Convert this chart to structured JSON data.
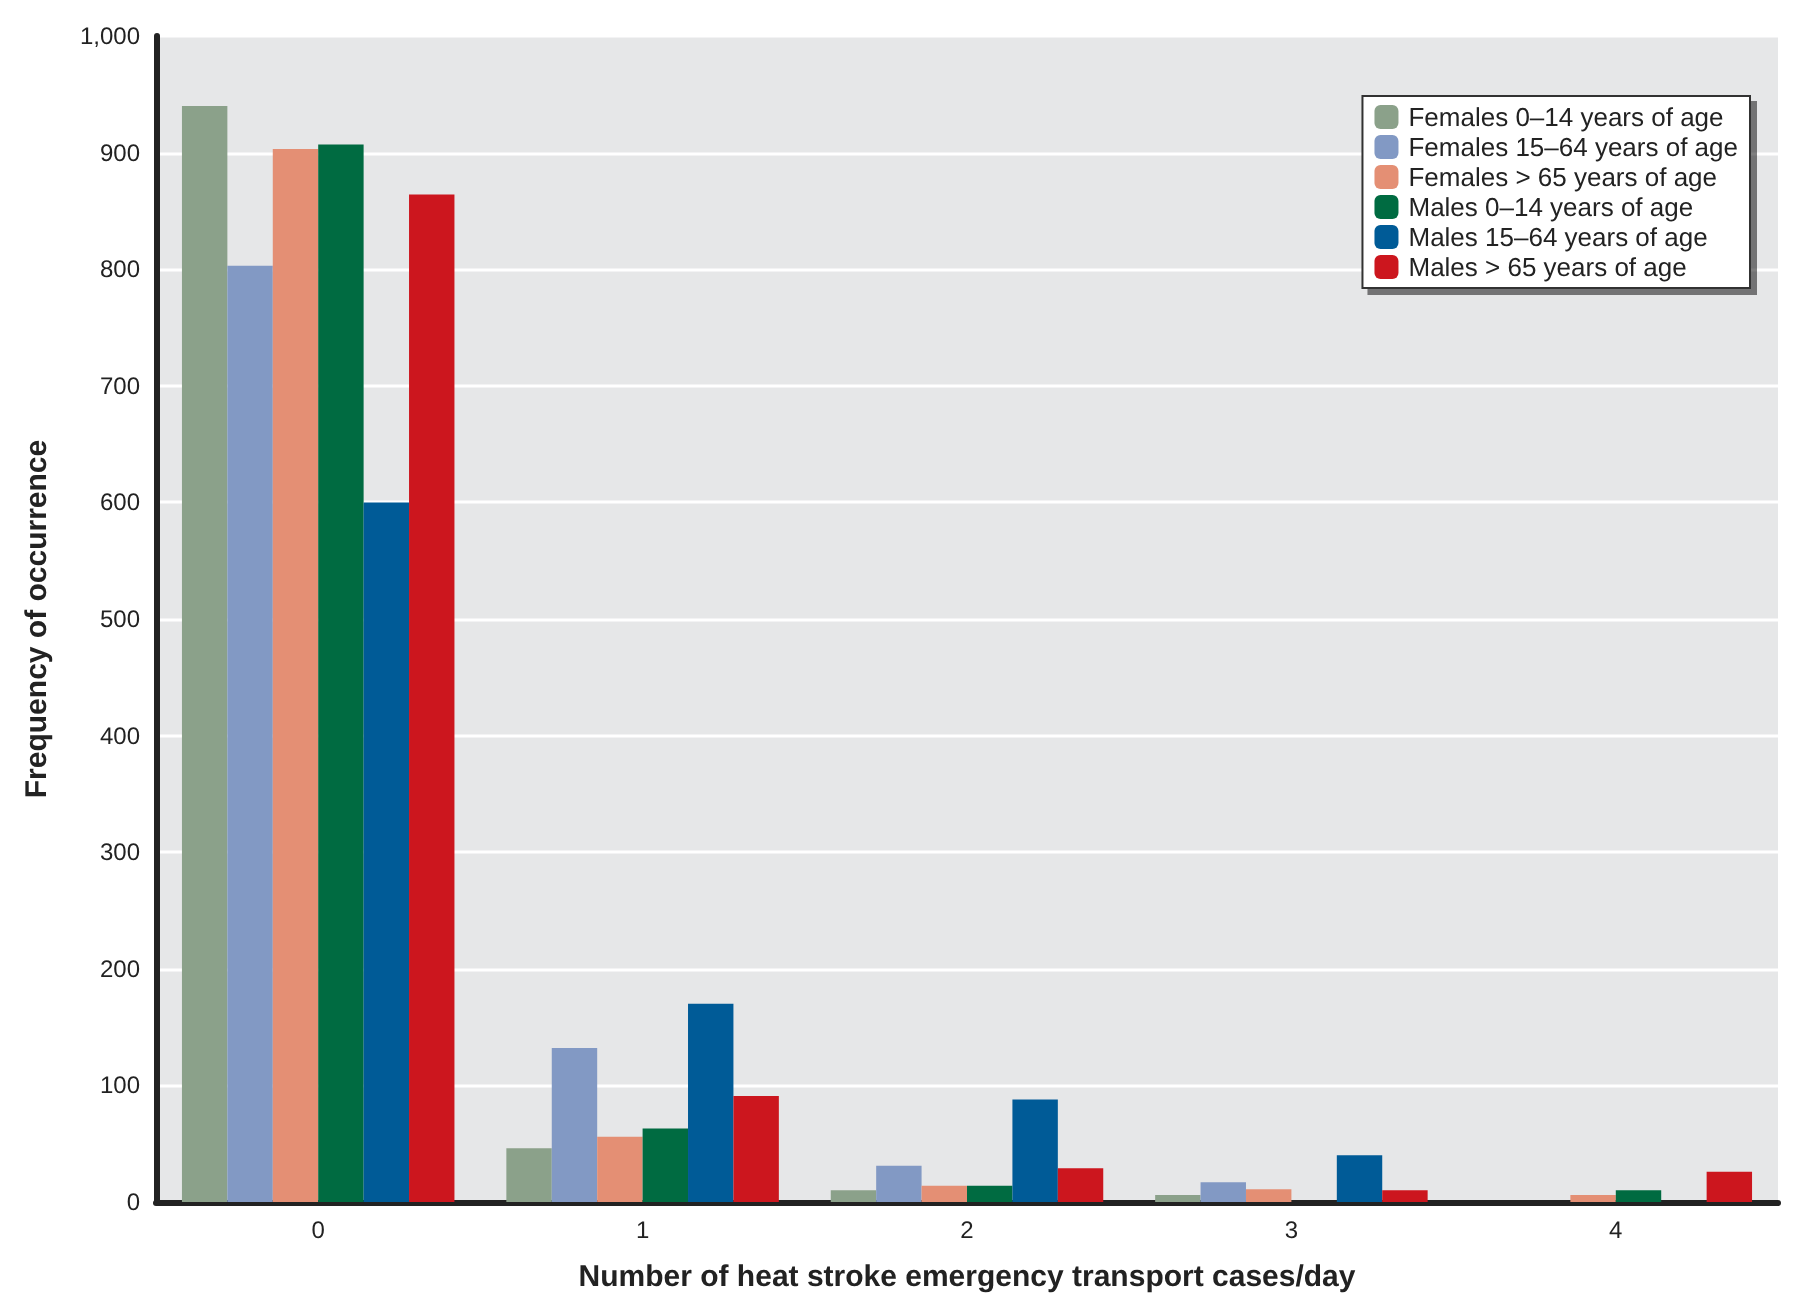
{
  "chart_data": {
    "type": "bar",
    "xlabel": "Number of heat stroke emergency transport cases/day",
    "ylabel": "Frequency of occurrence",
    "categories": [
      "0",
      "1",
      "2",
      "3",
      "4"
    ],
    "series": [
      {
        "name": "Females 0–14 years of age",
        "color": "#8ba18a",
        "values": [
          940,
          46,
          10,
          6,
          0
        ]
      },
      {
        "name": "Females 15–64 years of age",
        "color": "#8299c4",
        "values": [
          803,
          132,
          31,
          17,
          0
        ]
      },
      {
        "name": "Females > 65 years of age",
        "color": "#e48f74",
        "values": [
          903,
          56,
          14,
          11,
          6
        ]
      },
      {
        "name": "Males 0–14 years of age",
        "color": "#006b41",
        "values": [
          907,
          63,
          14,
          0,
          10
        ]
      },
      {
        "name": "Males 15–64 years of age",
        "color": "#005b97",
        "values": [
          600,
          170,
          88,
          40,
          0
        ]
      },
      {
        "name": "Males > 65 years of age",
        "color": "#cc161e",
        "values": [
          864,
          91,
          29,
          10,
          26
        ]
      }
    ],
    "ylim": [
      0,
      1000
    ],
    "yticks": [
      0,
      {
        "value": 100,
        "label": "100"
      },
      200,
      300,
      400,
      500,
      600,
      700,
      800,
      900,
      {
        "value": 1000,
        "label": "1,000"
      }
    ],
    "grid": "y",
    "legend": "top right"
  }
}
